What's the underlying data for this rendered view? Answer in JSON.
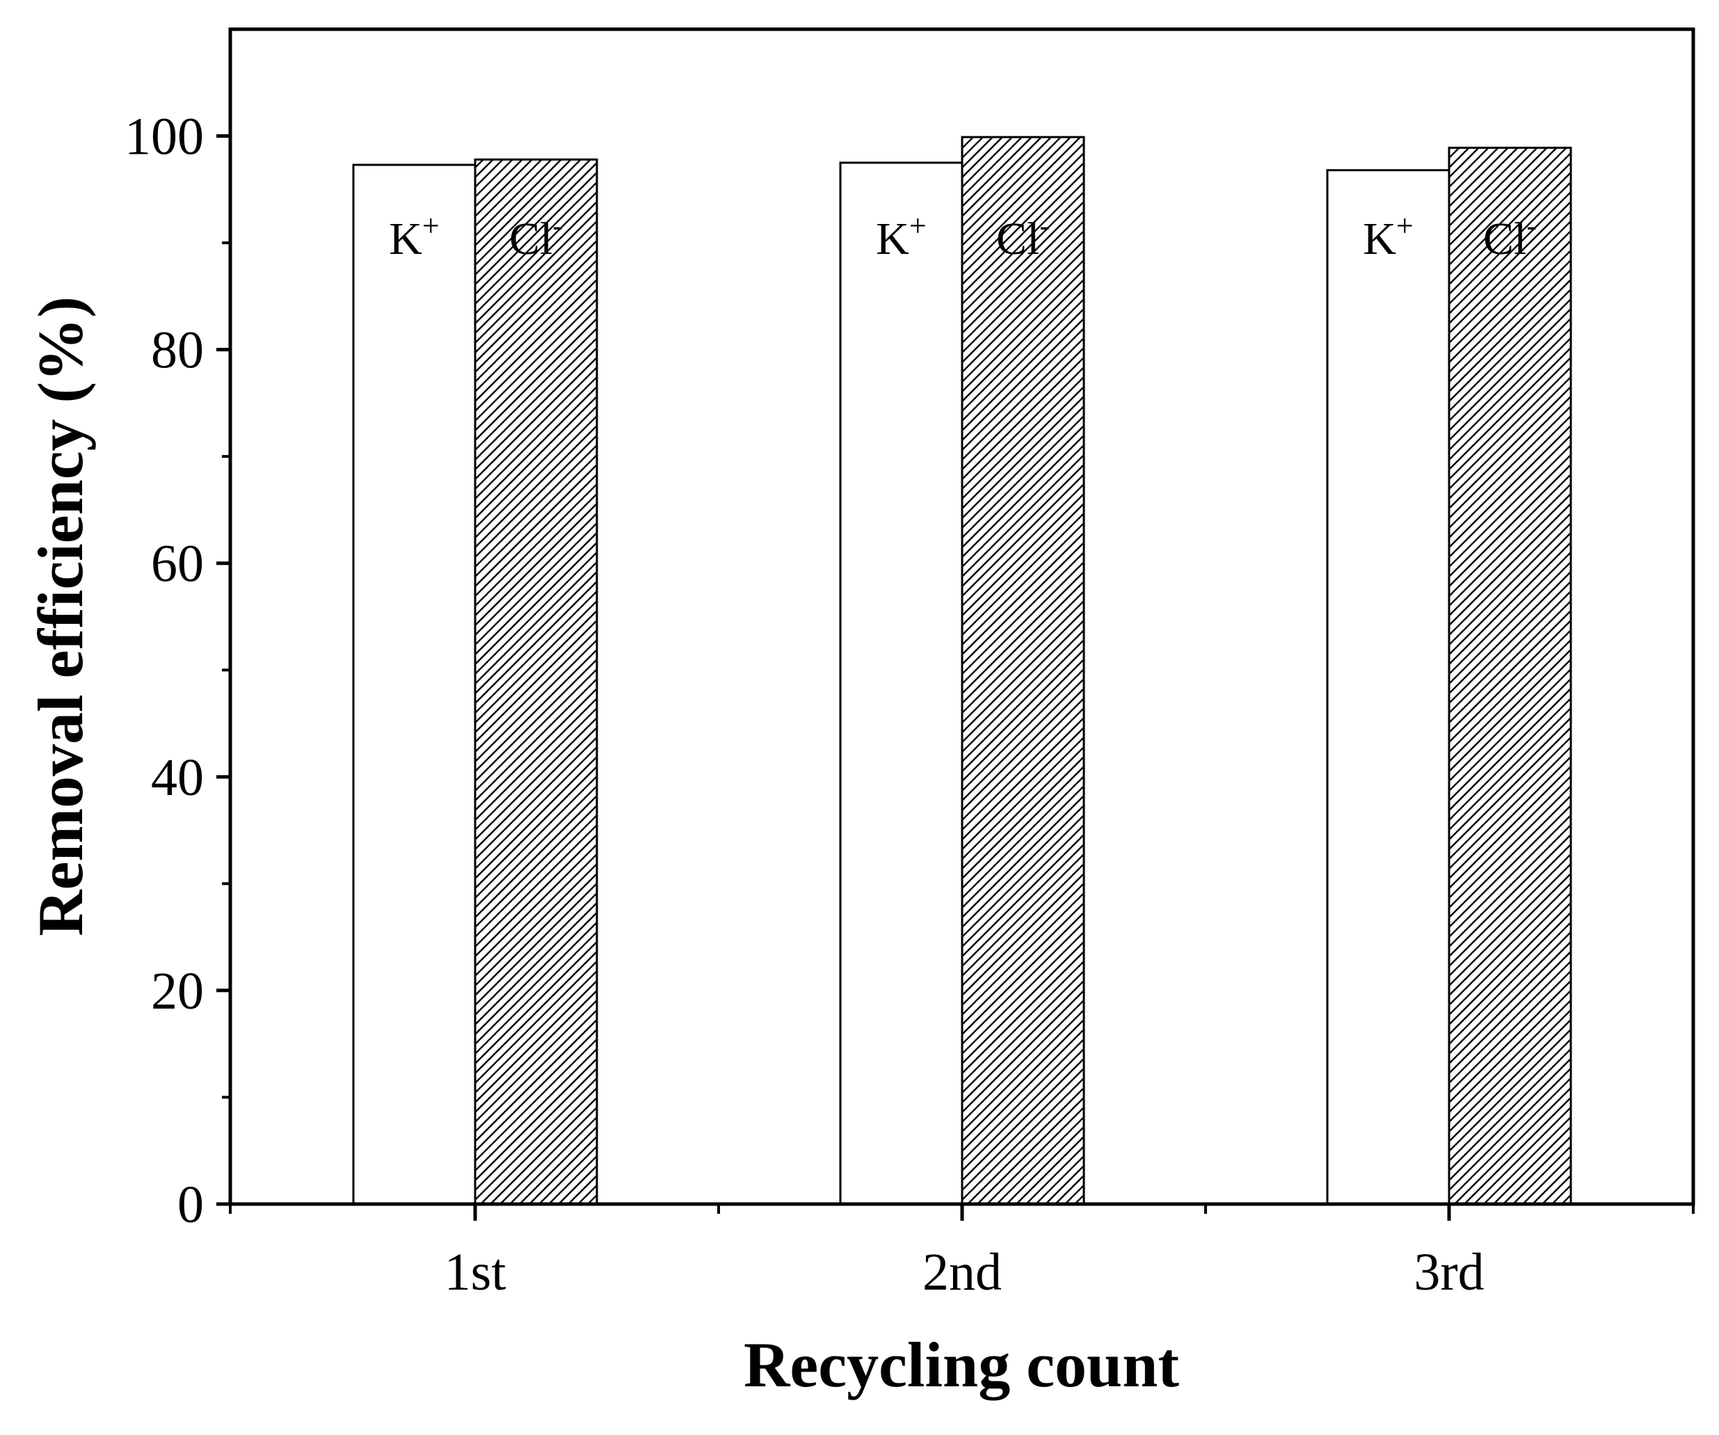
{
  "chart_data": {
    "type": "bar",
    "title": "",
    "xlabel": "Recycling count",
    "ylabel": "Removal efficiency (%)",
    "categories": [
      "1st",
      "2nd",
      "3rd"
    ],
    "ylim": [
      0,
      110
    ],
    "y_ticks": [
      0,
      20,
      40,
      60,
      80,
      100
    ],
    "y_tick_labels": [
      "0",
      "20",
      "40",
      "60",
      "80",
      "100"
    ],
    "grid": false,
    "series": [
      {
        "name": "K+",
        "label_base": "K",
        "label_sup": "+",
        "values": [
          97.3,
          97.5,
          96.8
        ],
        "fill": "#ffffff",
        "pattern": "none"
      },
      {
        "name": "Cl-",
        "label_base": "Cl",
        "label_sup": "-",
        "values": [
          97.8,
          99.9,
          98.9
        ],
        "fill": "#ffffff",
        "pattern": "diagonal-hatch"
      }
    ],
    "colors": {
      "axis": "#000000",
      "bar_edge": "#000000",
      "hatch": "#000000"
    }
  }
}
